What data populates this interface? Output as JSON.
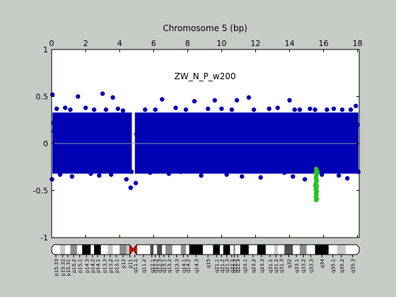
{
  "chart_data": {
    "type": "scatter",
    "title": "Chromosome 5 (bp)",
    "annotation": "ZW_N_P_w200",
    "x_ticks": [
      {
        "value": 0,
        "label": "0"
      },
      {
        "value": 2,
        "label": "2"
      },
      {
        "value": 4,
        "label": "4"
      },
      {
        "value": 6,
        "label": "6"
      },
      {
        "value": 8,
        "label": "8"
      },
      {
        "value": 10,
        "label": "10"
      },
      {
        "value": 12,
        "label": "12"
      },
      {
        "value": 14,
        "label": "14"
      },
      {
        "value": 16,
        "label": "16"
      },
      {
        "value": 18,
        "label": "18"
      }
    ],
    "y_ticks": [
      {
        "value": 1,
        "label": "1"
      },
      {
        "value": 0.5,
        "label": "0.5"
      },
      {
        "value": 0,
        "label": "0"
      },
      {
        "value": -0.5,
        "label": "-0.5"
      },
      {
        "value": -1,
        "label": "-1"
      }
    ],
    "xlim": [
      0,
      18.1
    ],
    "ylim": [
      -1,
      1
    ],
    "grid": false,
    "baseline": 0,
    "series": [
      {
        "color": "#0000b4",
        "band": {
          "x": [
            0.05,
            18.05
          ],
          "y_low": -0.32,
          "y_high": 0.33,
          "gap_x": [
            4.72,
            4.9
          ]
        },
        "values": [
          {
            "x": 0.05,
            "y": 0.52
          },
          {
            "x": 0.1,
            "y": 0.22
          },
          {
            "x": 0.15,
            "y": 0.13
          },
          {
            "x": 0.02,
            "y": -0.38
          },
          {
            "x": 0.3,
            "y": 0.37
          },
          {
            "x": 0.5,
            "y": -0.33
          },
          {
            "x": 0.8,
            "y": 0.38
          },
          {
            "x": 1.1,
            "y": 0.36
          },
          {
            "x": 1.2,
            "y": -0.35
          },
          {
            "x": 1.55,
            "y": 0.5
          },
          {
            "x": 2,
            "y": 0.38
          },
          {
            "x": 2.3,
            "y": -0.32
          },
          {
            "x": 2.5,
            "y": 0.36
          },
          {
            "x": 2.8,
            "y": -0.34
          },
          {
            "x": 3,
            "y": 0.53
          },
          {
            "x": 3.2,
            "y": 0.36
          },
          {
            "x": 3.5,
            "y": -0.33
          },
          {
            "x": 3.6,
            "y": 0.49
          },
          {
            "x": 3.9,
            "y": 0.37
          },
          {
            "x": 4.2,
            "y": 0.35
          },
          {
            "x": 4.4,
            "y": -0.38
          },
          {
            "x": 4.65,
            "y": -0.47
          },
          {
            "x": 4.7,
            "y": -0.3
          },
          {
            "x": 4.95,
            "y": -0.42
          },
          {
            "x": 5,
            "y": 0.1
          },
          {
            "x": 5.5,
            "y": 0.36
          },
          {
            "x": 5.8,
            "y": -0.31
          },
          {
            "x": 6.1,
            "y": 0.36
          },
          {
            "x": 6.5,
            "y": 0.47
          },
          {
            "x": 6.9,
            "y": -0.32
          },
          {
            "x": 7.3,
            "y": 0.38
          },
          {
            "x": 7.6,
            "y": -0.3
          },
          {
            "x": 7.9,
            "y": 0.36
          },
          {
            "x": 8.4,
            "y": 0.45
          },
          {
            "x": 8.8,
            "y": -0.34
          },
          {
            "x": 9.2,
            "y": 0.37
          },
          {
            "x": 9.6,
            "y": 0.46
          },
          {
            "x": 10,
            "y": 0.37
          },
          {
            "x": 10.3,
            "y": -0.33
          },
          {
            "x": 10.6,
            "y": 0.36
          },
          {
            "x": 10.9,
            "y": 0.46
          },
          {
            "x": 11.2,
            "y": -0.35
          },
          {
            "x": 11.6,
            "y": 0.49
          },
          {
            "x": 11.9,
            "y": 0.36
          },
          {
            "x": 12.3,
            "y": -0.36
          },
          {
            "x": 12.8,
            "y": 0.37
          },
          {
            "x": 13.3,
            "y": 0.38
          },
          {
            "x": 13.7,
            "y": -0.31
          },
          {
            "x": 14,
            "y": 0.46
          },
          {
            "x": 14.2,
            "y": -0.35
          },
          {
            "x": 14.3,
            "y": 0.36
          },
          {
            "x": 14.6,
            "y": 0.36
          },
          {
            "x": 14.9,
            "y": -0.38
          },
          {
            "x": 15.2,
            "y": 0.37
          },
          {
            "x": 15.5,
            "y": 0.36
          },
          {
            "x": 15.9,
            "y": -0.33
          },
          {
            "x": 16.2,
            "y": 0.36
          },
          {
            "x": 16.6,
            "y": 0.37
          },
          {
            "x": 16.9,
            "y": -0.34
          },
          {
            "x": 17.1,
            "y": 0.36
          },
          {
            "x": 17.4,
            "y": -0.37
          },
          {
            "x": 17.6,
            "y": 0.36
          },
          {
            "x": 17.9,
            "y": 0.4
          },
          {
            "x": 18,
            "y": 0.2
          },
          {
            "x": 18.05,
            "y": -0.3
          }
        ]
      },
      {
        "color": "#22c51f",
        "values": [
          {
            "x": 15.57,
            "y": -0.27
          },
          {
            "x": 15.59,
            "y": -0.29
          },
          {
            "x": 15.55,
            "y": -0.31
          },
          {
            "x": 15.6,
            "y": -0.33
          },
          {
            "x": 15.57,
            "y": -0.35
          },
          {
            "x": 15.55,
            "y": -0.37
          },
          {
            "x": 15.6,
            "y": -0.39
          },
          {
            "x": 15.57,
            "y": -0.41
          },
          {
            "x": 15.54,
            "y": -0.43
          },
          {
            "x": 15.6,
            "y": -0.45
          },
          {
            "x": 15.57,
            "y": -0.47
          },
          {
            "x": 15.55,
            "y": -0.49
          },
          {
            "x": 15.6,
            "y": -0.51
          },
          {
            "x": 15.56,
            "y": -0.53
          },
          {
            "x": 15.58,
            "y": -0.55
          },
          {
            "x": 15.55,
            "y": -0.57
          },
          {
            "x": 15.6,
            "y": -0.59
          },
          {
            "x": 15.57,
            "y": -0.6
          },
          {
            "x": 15.63,
            "y": -0.3
          },
          {
            "x": 15.52,
            "y": -0.45
          }
        ]
      }
    ],
    "ideogram": {
      "centromere_x": 4.8,
      "bands": [
        {
          "label": "p15.33",
          "start": 0,
          "end": 0.5,
          "stain": "gneg"
        },
        {
          "label": "p15.32",
          "start": 0.5,
          "end": 0.8,
          "stain": "gpos25"
        },
        {
          "label": "p15.31",
          "start": 0.8,
          "end": 1.1,
          "stain": "gneg"
        },
        {
          "label": "p15.2",
          "start": 1.1,
          "end": 1.5,
          "stain": "gpos50"
        },
        {
          "label": "p15.1",
          "start": 1.5,
          "end": 1.8,
          "stain": "gneg"
        },
        {
          "label": "p14.3",
          "start": 1.8,
          "end": 2.3,
          "stain": "gpos100"
        },
        {
          "label": "p14.2",
          "start": 2.3,
          "end": 2.5,
          "stain": "gneg"
        },
        {
          "label": "p14.1",
          "start": 2.5,
          "end": 2.9,
          "stain": "gpos100"
        },
        {
          "label": "p13.3",
          "start": 2.9,
          "end": 3.3,
          "stain": "gneg"
        },
        {
          "label": "p13.2",
          "start": 3.3,
          "end": 3.6,
          "stain": "gpos25"
        },
        {
          "label": "p13.1",
          "start": 3.6,
          "end": 4.0,
          "stain": "gneg"
        },
        {
          "label": "p12",
          "start": 4.0,
          "end": 4.4,
          "stain": "gpos50"
        },
        {
          "label": "p11",
          "start": 4.4,
          "end": 4.8,
          "stain": "acen"
        },
        {
          "label": "q11.1",
          "start": 4.8,
          "end": 5.0,
          "stain": "acen"
        },
        {
          "label": "q11.2",
          "start": 5.0,
          "end": 5.8,
          "stain": "gneg"
        },
        {
          "label": "q12.1",
          "start": 5.8,
          "end": 6.0,
          "stain": "gpos75"
        },
        {
          "label": "q12.2",
          "start": 6.0,
          "end": 6.2,
          "stain": "gneg"
        },
        {
          "label": "q12.3",
          "start": 6.2,
          "end": 6.5,
          "stain": "gpos75"
        },
        {
          "label": "q13.1",
          "start": 6.5,
          "end": 6.7,
          "stain": "gneg"
        },
        {
          "label": "q13.2",
          "start": 6.7,
          "end": 7.1,
          "stain": "gpos50"
        },
        {
          "label": "q13.3",
          "start": 7.1,
          "end": 7.6,
          "stain": "gneg"
        },
        {
          "label": "q14.1",
          "start": 7.6,
          "end": 7.9,
          "stain": "gpos50"
        },
        {
          "label": "q14.2",
          "start": 7.9,
          "end": 8.1,
          "stain": "gneg"
        },
        {
          "label": "q14.3",
          "start": 8.1,
          "end": 8.9,
          "stain": "gpos100"
        },
        {
          "label": "q15",
          "start": 8.9,
          "end": 9.5,
          "stain": "gneg"
        },
        {
          "label": "q21.1",
          "start": 9.5,
          "end": 9.9,
          "stain": "gpos100"
        },
        {
          "label": "q21.2",
          "start": 9.9,
          "end": 10.1,
          "stain": "gneg"
        },
        {
          "label": "q21.3",
          "start": 10.1,
          "end": 10.5,
          "stain": "gpos100"
        },
        {
          "label": "q22.1",
          "start": 10.5,
          "end": 10.7,
          "stain": "gneg"
        },
        {
          "label": "q22.2",
          "start": 10.7,
          "end": 10.8,
          "stain": "gpos50"
        },
        {
          "label": "q22.3",
          "start": 10.8,
          "end": 11.1,
          "stain": "gneg"
        },
        {
          "label": "q23.1",
          "start": 11.1,
          "end": 11.6,
          "stain": "gpos100"
        },
        {
          "label": "q23.2",
          "start": 11.6,
          "end": 12.1,
          "stain": "gneg"
        },
        {
          "label": "q23.3",
          "start": 12.1,
          "end": 12.6,
          "stain": "gpos100"
        },
        {
          "label": "q31.1",
          "start": 12.6,
          "end": 13.1,
          "stain": "gneg"
        },
        {
          "label": "q31.2",
          "start": 13.1,
          "end": 13.3,
          "stain": "gpos25"
        },
        {
          "label": "q31.3",
          "start": 13.3,
          "end": 13.7,
          "stain": "gneg"
        },
        {
          "label": "q32",
          "start": 13.7,
          "end": 14.2,
          "stain": "gpos75"
        },
        {
          "label": "q33.1",
          "start": 14.2,
          "end": 14.6,
          "stain": "gneg"
        },
        {
          "label": "q33.2",
          "start": 14.6,
          "end": 15.0,
          "stain": "gpos50"
        },
        {
          "label": "q33.3",
          "start": 15.0,
          "end": 15.5,
          "stain": "gneg"
        },
        {
          "label": "q34",
          "start": 15.5,
          "end": 16.3,
          "stain": "gpos100"
        },
        {
          "label": "q35.1",
          "start": 16.3,
          "end": 16.8,
          "stain": "gneg"
        },
        {
          "label": "q35.2",
          "start": 16.8,
          "end": 17.3,
          "stain": "gpos25"
        },
        {
          "label": "q35.3",
          "start": 17.3,
          "end": 18.1,
          "stain": "gneg"
        }
      ]
    }
  }
}
